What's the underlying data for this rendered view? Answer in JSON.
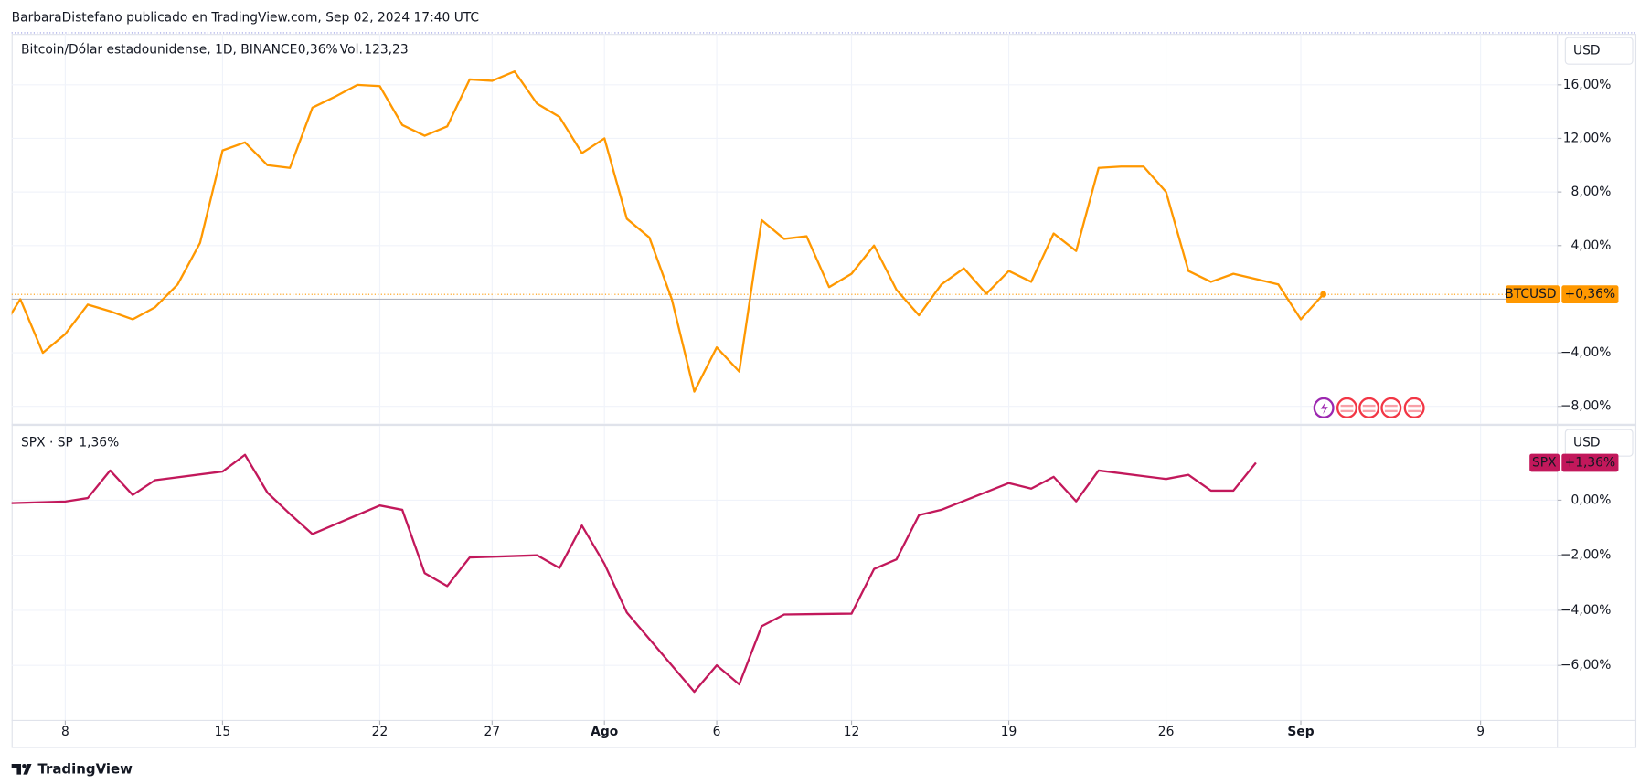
{
  "header": "BarbaraDistefano publicado en TradingView.com, Sep 02, 2024 17:40 UTC",
  "footer": "TradingView",
  "chart_data": [
    {
      "type": "line",
      "title": "Bitcoin/Dólar estadounidense, 1D, BINANCE",
      "change": "0,36%",
      "volume_label": "Vol.",
      "volume": "123,23",
      "currency": "USD",
      "xlim": [
        "07-05",
        "09-12"
      ],
      "series": [
        {
          "name": "BTCUSD",
          "color": "#ff9800",
          "last_label": "+0,36%",
          "x": [
            "07-05",
            "07-06",
            "07-07",
            "07-08",
            "07-09",
            "07-10",
            "07-11",
            "07-12",
            "07-13",
            "07-14",
            "07-15",
            "07-16",
            "07-17",
            "07-18",
            "07-19",
            "07-20",
            "07-21",
            "07-22",
            "07-23",
            "07-24",
            "07-25",
            "07-26",
            "07-27",
            "07-28",
            "07-29",
            "07-30",
            "07-31",
            "08-01",
            "08-02",
            "08-03",
            "08-04",
            "08-05",
            "08-06",
            "08-07",
            "08-08",
            "08-09",
            "08-10",
            "08-11",
            "08-12",
            "08-13",
            "08-14",
            "08-15",
            "08-16",
            "08-17",
            "08-18",
            "08-19",
            "08-20",
            "08-21",
            "08-22",
            "08-23",
            "08-24",
            "08-25",
            "08-26",
            "08-27",
            "08-28",
            "08-29",
            "08-30",
            "08-31",
            "09-01",
            "09-02"
          ],
          "values": [
            -2.7,
            0.0,
            -4.0,
            -2.6,
            -0.4,
            -0.9,
            -1.5,
            -0.6,
            1.1,
            4.2,
            11.1,
            11.7,
            10.0,
            9.8,
            14.3,
            15.1,
            16.0,
            15.9,
            13.0,
            12.2,
            12.9,
            16.4,
            16.3,
            17.0,
            14.6,
            13.6,
            10.9,
            12.0,
            6.0,
            4.6,
            0.0,
            -6.9,
            -3.6,
            -5.4,
            5.9,
            4.5,
            4.7,
            0.9,
            1.9,
            4.0,
            0.7,
            -1.2,
            1.1,
            2.3,
            0.4,
            2.1,
            1.3,
            4.9,
            3.6,
            9.8,
            9.9,
            9.9,
            8.0,
            2.1,
            1.3,
            1.9,
            1.5,
            1.1,
            -1.5,
            0.36
          ]
        }
      ],
      "ylim": [
        -9.3,
        19.8
      ],
      "yticks": [
        {
          "value": 16,
          "label": "16,00%"
        },
        {
          "value": 12,
          "label": "12,00%"
        },
        {
          "value": 8,
          "label": "8,00%"
        },
        {
          "value": 4,
          "label": "4,00%"
        },
        {
          "value": -4,
          "label": "−4,00%"
        },
        {
          "value": -8,
          "label": "−8,00%"
        }
      ],
      "grid": true
    },
    {
      "type": "line",
      "title": "SPX · SP",
      "change": "1,36%",
      "currency": "USD",
      "xlim": [
        "07-05",
        "09-12"
      ],
      "series": [
        {
          "name": "SPX",
          "color": "#c2185b",
          "last_label": "+1,36%",
          "x": [
            "07-05",
            "07-08",
            "07-09",
            "07-10",
            "07-11",
            "07-12",
            "07-15",
            "07-16",
            "07-17",
            "07-18",
            "07-19",
            "07-22",
            "07-23",
            "07-24",
            "07-25",
            "07-26",
            "07-29",
            "07-30",
            "07-31",
            "08-01",
            "08-02",
            "08-05",
            "08-06",
            "08-07",
            "08-08",
            "08-09",
            "08-12",
            "08-13",
            "08-14",
            "08-15",
            "08-16",
            "08-19",
            "08-20",
            "08-21",
            "08-22",
            "08-23",
            "08-26",
            "08-27",
            "08-28",
            "08-29",
            "08-30"
          ],
          "values": [
            -0.12,
            -0.05,
            0.08,
            1.08,
            0.19,
            0.73,
            1.04,
            1.65,
            0.27,
            -0.5,
            -1.23,
            -0.19,
            -0.35,
            -2.65,
            -3.12,
            -2.08,
            -2.0,
            -2.46,
            -0.92,
            -2.31,
            -4.08,
            -6.96,
            -6.0,
            -6.69,
            -4.58,
            -4.15,
            -4.12,
            -2.5,
            -2.15,
            -0.54,
            -0.35,
            0.62,
            0.42,
            0.85,
            -0.04,
            1.08,
            0.77,
            0.92,
            0.35,
            0.35,
            1.36
          ]
        }
      ],
      "ylim": [
        -8.0,
        2.7
      ],
      "yticks": [
        {
          "value": 0,
          "label": "0,00%"
        },
        {
          "value": -2,
          "label": "−2,00%"
        },
        {
          "value": -4,
          "label": "−4,00%"
        },
        {
          "value": -6,
          "label": "−6,00%"
        }
      ],
      "xticks": [
        {
          "value": "07-08",
          "label": "8"
        },
        {
          "value": "07-15",
          "label": "15"
        },
        {
          "value": "07-22",
          "label": "22"
        },
        {
          "value": "07-27",
          "label": "27"
        },
        {
          "value": "08-01",
          "label": "Ago"
        },
        {
          "value": "08-06",
          "label": "6"
        },
        {
          "value": "08-12",
          "label": "12"
        },
        {
          "value": "08-19",
          "label": "19"
        },
        {
          "value": "08-26",
          "label": "26"
        },
        {
          "value": "09-01",
          "label": "Sep"
        },
        {
          "value": "09-09",
          "label": "9"
        }
      ],
      "grid": true
    }
  ]
}
